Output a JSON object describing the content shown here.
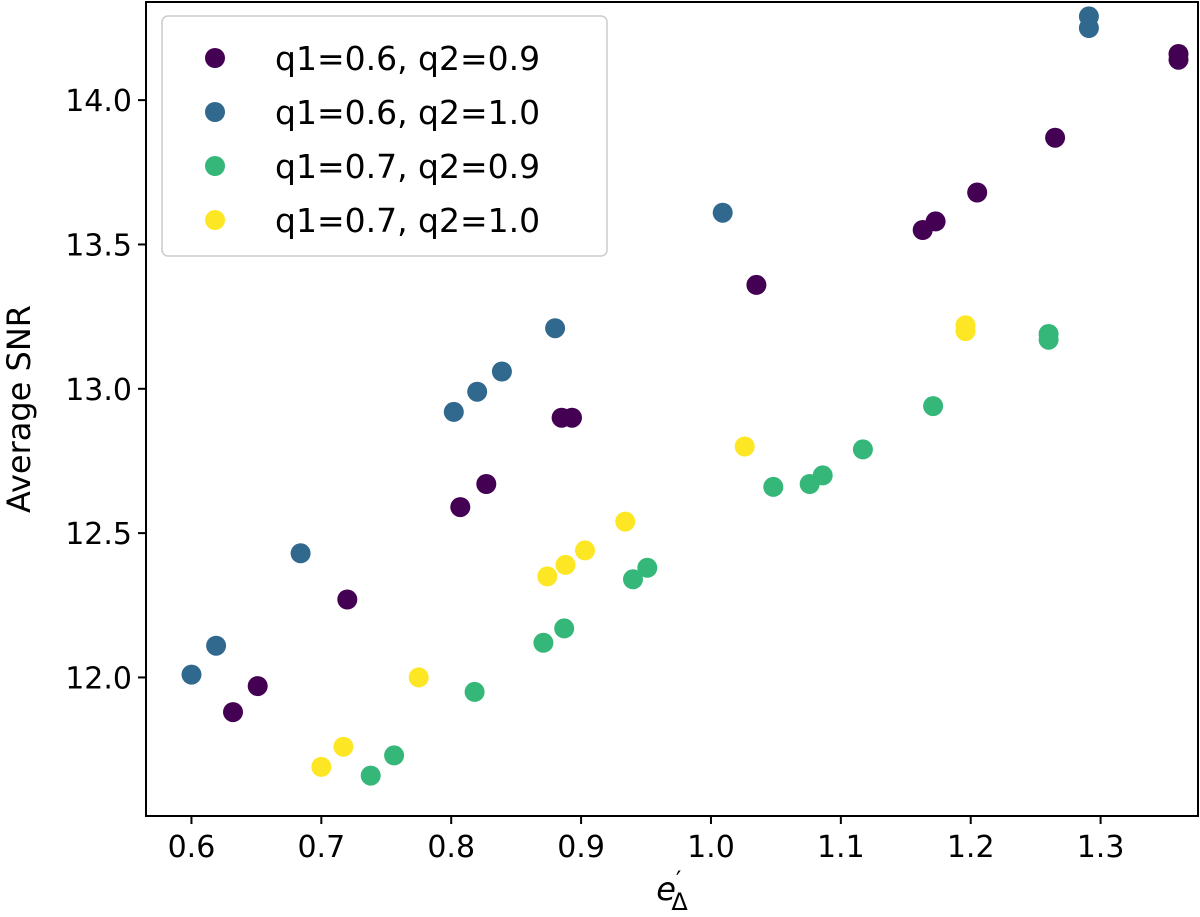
{
  "chart_data": {
    "type": "scatter",
    "title": "",
    "xlabel": "e",
    "xlabel_sub": "Δ",
    "xlabel_prime": "′",
    "ylabel": "Average SNR",
    "xlim": [
      0.565,
      1.375
    ],
    "ylim": [
      11.52,
      14.34
    ],
    "x_ticks": [
      0.6,
      0.7,
      0.8,
      0.9,
      1.0,
      1.1,
      1.2,
      1.3
    ],
    "x_tick_labels": [
      "0.6",
      "0.7",
      "0.8",
      "0.9",
      "1.0",
      "1.1",
      "1.2",
      "1.3"
    ],
    "y_ticks": [
      12.0,
      12.5,
      13.0,
      13.5,
      14.0
    ],
    "y_tick_labels": [
      "12.0",
      "12.5",
      "13.0",
      "13.5",
      "14.0"
    ],
    "grid": false,
    "legend_position": "upper-left",
    "series": [
      {
        "name": "q1=0.6, q2=0.9",
        "color": "#440154",
        "points": [
          [
            0.632,
            11.88
          ],
          [
            0.651,
            11.97
          ],
          [
            0.72,
            12.27
          ],
          [
            0.807,
            12.59
          ],
          [
            0.827,
            12.67
          ],
          [
            0.885,
            12.9
          ],
          [
            0.893,
            12.9
          ],
          [
            1.035,
            13.36
          ],
          [
            1.163,
            13.55
          ],
          [
            1.173,
            13.58
          ],
          [
            1.205,
            13.68
          ],
          [
            1.265,
            13.87
          ],
          [
            1.36,
            14.14
          ],
          [
            1.36,
            14.16
          ]
        ]
      },
      {
        "name": "q1=0.6, q2=1.0",
        "color": "#31688e",
        "points": [
          [
            0.6,
            12.01
          ],
          [
            0.619,
            12.11
          ],
          [
            0.684,
            12.43
          ],
          [
            0.802,
            12.92
          ],
          [
            0.82,
            12.99
          ],
          [
            0.839,
            13.06
          ],
          [
            0.88,
            13.21
          ],
          [
            1.009,
            13.61
          ],
          [
            1.291,
            14.25
          ],
          [
            1.291,
            14.29
          ]
        ]
      },
      {
        "name": "q1=0.7, q2=0.9",
        "color": "#35b779",
        "points": [
          [
            0.738,
            11.66
          ],
          [
            0.756,
            11.73
          ],
          [
            0.818,
            11.95
          ],
          [
            0.871,
            12.12
          ],
          [
            0.887,
            12.17
          ],
          [
            0.94,
            12.34
          ],
          [
            0.951,
            12.38
          ],
          [
            1.048,
            12.66
          ],
          [
            1.076,
            12.67
          ],
          [
            1.086,
            12.7
          ],
          [
            1.117,
            12.79
          ],
          [
            1.171,
            12.94
          ],
          [
            1.26,
            13.17
          ],
          [
            1.26,
            13.19
          ]
        ]
      },
      {
        "name": "q1=0.7, q2=1.0",
        "color": "#fde725",
        "points": [
          [
            0.7,
            11.69
          ],
          [
            0.717,
            11.76
          ],
          [
            0.775,
            12.0
          ],
          [
            0.874,
            12.35
          ],
          [
            0.888,
            12.39
          ],
          [
            0.903,
            12.44
          ],
          [
            0.934,
            12.54
          ],
          [
            1.026,
            12.8
          ],
          [
            1.196,
            13.2
          ],
          [
            1.196,
            13.22
          ]
        ]
      }
    ]
  }
}
